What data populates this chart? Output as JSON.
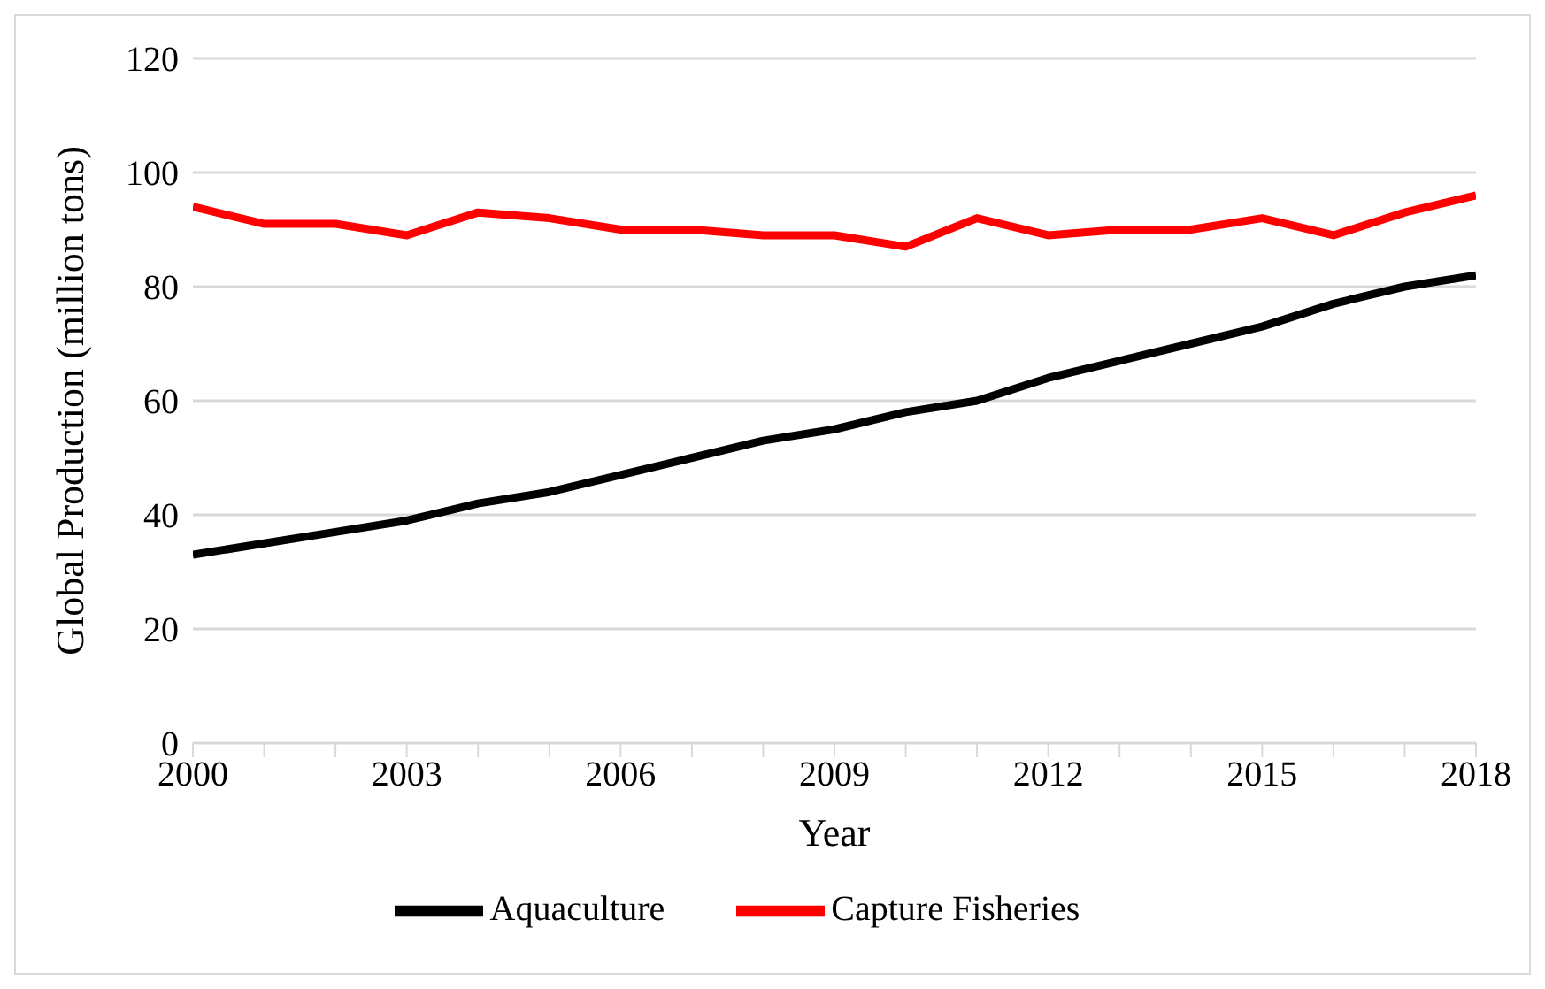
{
  "chart_data": {
    "type": "line",
    "xlabel": "Year",
    "ylabel": "Global Production (million tons)",
    "x": [
      2000,
      2001,
      2002,
      2003,
      2004,
      2005,
      2006,
      2007,
      2008,
      2009,
      2010,
      2011,
      2012,
      2013,
      2014,
      2015,
      2016,
      2017,
      2018
    ],
    "series": [
      {
        "name": "Aquaculture",
        "color": "#000000",
        "values": [
          33,
          35,
          37,
          39,
          42,
          44,
          47,
          50,
          53,
          55,
          58,
          60,
          64,
          67,
          70,
          73,
          77,
          80,
          82
        ]
      },
      {
        "name": "Capture Fisheries",
        "color": "#ff0000",
        "values": [
          94,
          91,
          91,
          89,
          93,
          92,
          90,
          90,
          89,
          89,
          87,
          92,
          89,
          90,
          90,
          92,
          89,
          93,
          96
        ]
      }
    ],
    "xlim": [
      2000,
      2018
    ],
    "xticks": [
      2000,
      {
        "value": 2001,
        "label": null
      },
      {
        "value": 2002,
        "label": null
      },
      2003,
      {
        "value": 2004,
        "label": null
      },
      {
        "value": 2005,
        "label": null
      },
      2006,
      {
        "value": 2007,
        "label": null
      },
      {
        "value": 2008,
        "label": null
      },
      2009,
      {
        "value": 2010,
        "label": null
      },
      {
        "value": 2011,
        "label": null
      },
      2012,
      {
        "value": 2013,
        "label": null
      },
      {
        "value": 2014,
        "label": null
      },
      2015,
      {
        "value": 2016,
        "label": null
      },
      {
        "value": 2017,
        "label": null
      },
      2018
    ],
    "ylim": [
      0,
      120
    ],
    "yticks": [
      0,
      20,
      40,
      60,
      80,
      100,
      120
    ],
    "grid": "y",
    "legend": "bottom",
    "marker": "none",
    "line_style": "solid"
  }
}
